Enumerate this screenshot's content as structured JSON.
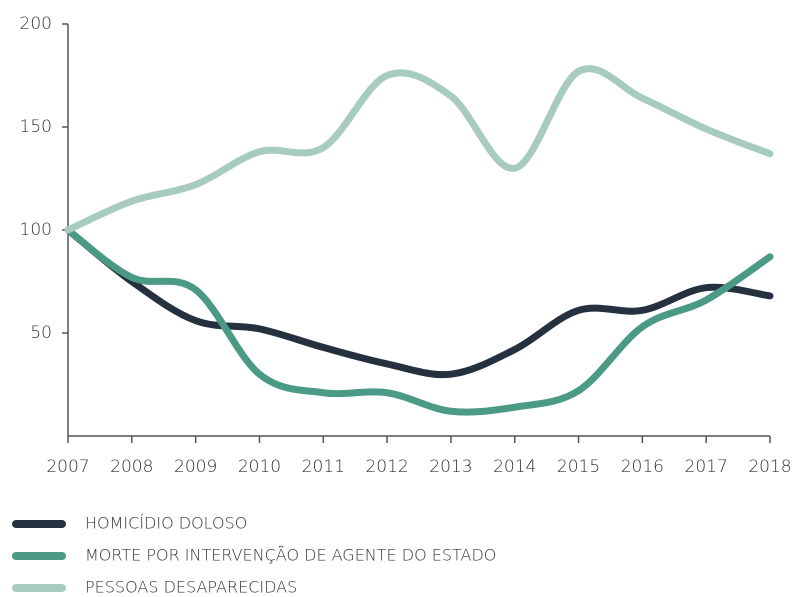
{
  "chart_data": {
    "type": "line",
    "x": [
      2007,
      2008,
      2009,
      2010,
      2011,
      2012,
      2013,
      2014,
      2015,
      2016,
      2017,
      2018
    ],
    "xticks": [
      2007,
      2008,
      2009,
      2010,
      2011,
      2012,
      2013,
      2014,
      2015,
      2016,
      2017,
      2018
    ],
    "xlim": [
      2007,
      2018
    ],
    "ylim": [
      0,
      200
    ],
    "yticks": [
      50,
      100,
      150,
      200
    ],
    "legend": "bottom",
    "series": [
      {
        "name": "HOMICÍDIO DOLOSO",
        "color": "#25313f",
        "values": [
          100,
          75,
          56,
          52,
          43,
          35,
          30,
          42,
          61,
          61,
          72,
          68
        ]
      },
      {
        "name": "MORTE POR INTERVENÇÃO DE AGENTE DO ESTADO",
        "color": "#4a9a86",
        "values": [
          100,
          77,
          71,
          30,
          21,
          21,
          12,
          14,
          22,
          53,
          66,
          87
        ]
      },
      {
        "name": "PESSOAS DESAPARECIDAS",
        "color": "#a8cbbf",
        "values": [
          100,
          114,
          122,
          138,
          140,
          175,
          165,
          130,
          177,
          164,
          149,
          137
        ]
      }
    ]
  }
}
